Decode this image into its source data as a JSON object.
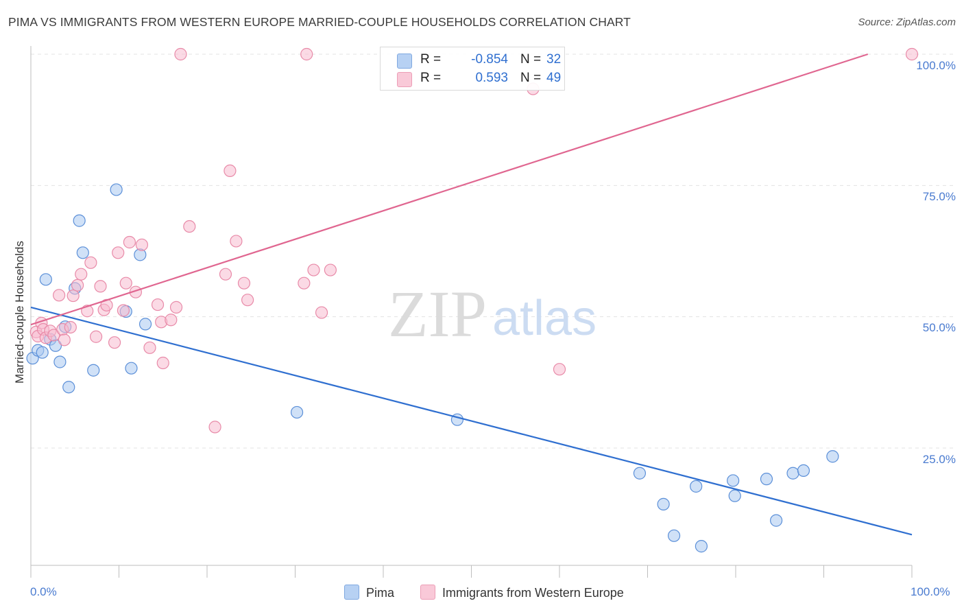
{
  "title": "PIMA VS IMMIGRANTS FROM WESTERN EUROPE MARRIED-COUPLE HOUSEHOLDS CORRELATION CHART",
  "source": "Source: ZipAtlas.com",
  "watermark": {
    "zip": "ZIP",
    "atlas": "atlas"
  },
  "legend": {
    "rows": [
      {
        "r_label": "R =",
        "r_value": "-0.854",
        "n_label": "N =",
        "n_value": "32"
      },
      {
        "r_label": "R =",
        "r_value": "0.593",
        "n_label": "N =",
        "n_value": "49"
      }
    ]
  },
  "chart_data": {
    "type": "scatter",
    "title": "PIMA VS IMMIGRANTS FROM WESTERN EUROPE MARRIED-COUPLE HOUSEHOLDS CORRELATION CHART",
    "xlabel": "",
    "ylabel": "Married-couple Households",
    "x_tick_labels": [
      "0.0%",
      "100.0%"
    ],
    "y_tick_labels": [
      "100.0%",
      "75.0%",
      "50.0%",
      "25.0%"
    ],
    "xlim": [
      0,
      100
    ],
    "ylim": [
      2,
      100
    ],
    "grid": "horizontal dashed",
    "legend_position": "bottom",
    "series": [
      {
        "name": "Pima",
        "color": "#a9c8f0",
        "edge_color": "#5b8fd8",
        "line_color": "#2f6fd0",
        "r": -0.854,
        "n": 32,
        "trend": [
          [
            0,
            51.8
          ],
          [
            100,
            8.5
          ]
        ],
        "points": [
          [
            0.2,
            42.1
          ],
          [
            0.8,
            43.6
          ],
          [
            1.3,
            43.2
          ],
          [
            1.7,
            57.1
          ],
          [
            2.2,
            45.7
          ],
          [
            2.8,
            44.5
          ],
          [
            3.3,
            41.4
          ],
          [
            3.9,
            48.1
          ],
          [
            4.3,
            36.6
          ],
          [
            5.0,
            55.4
          ],
          [
            5.5,
            68.3
          ],
          [
            5.9,
            62.2
          ],
          [
            7.1,
            39.8
          ],
          [
            9.7,
            74.2
          ],
          [
            10.8,
            51.0
          ],
          [
            11.4,
            40.2
          ],
          [
            12.4,
            61.8
          ],
          [
            13.0,
            48.6
          ],
          [
            30.2,
            31.8
          ],
          [
            48.4,
            30.4
          ],
          [
            69.1,
            20.2
          ],
          [
            71.8,
            14.3
          ],
          [
            73.0,
            8.3
          ],
          [
            75.5,
            17.7
          ],
          [
            76.1,
            6.3
          ],
          [
            79.7,
            18.8
          ],
          [
            79.9,
            15.9
          ],
          [
            83.5,
            19.1
          ],
          [
            84.6,
            11.2
          ],
          [
            86.5,
            20.2
          ],
          [
            87.7,
            20.7
          ],
          [
            91.0,
            23.4
          ]
        ]
      },
      {
        "name": "Immigrants from Western Europe",
        "color": "#f7bcd0",
        "edge_color": "#e88aa8",
        "line_color": "#e06690",
        "r": 0.593,
        "n": 49,
        "trend": [
          [
            0,
            48.5
          ],
          [
            95,
            100
          ]
        ],
        "points": [
          [
            0.6,
            47.1
          ],
          [
            0.8,
            46.3
          ],
          [
            1.2,
            48.8
          ],
          [
            1.4,
            47.6
          ],
          [
            1.7,
            46.0
          ],
          [
            2.2,
            47.3
          ],
          [
            2.6,
            46.5
          ],
          [
            3.2,
            54.1
          ],
          [
            3.6,
            47.6
          ],
          [
            3.8,
            45.6
          ],
          [
            4.5,
            48.0
          ],
          [
            4.8,
            54.0
          ],
          [
            5.3,
            56.0
          ],
          [
            5.7,
            58.1
          ],
          [
            6.4,
            51.1
          ],
          [
            6.8,
            60.3
          ],
          [
            7.4,
            46.2
          ],
          [
            7.9,
            55.8
          ],
          [
            8.3,
            51.3
          ],
          [
            8.6,
            52.2
          ],
          [
            9.5,
            45.1
          ],
          [
            9.9,
            62.2
          ],
          [
            10.5,
            51.2
          ],
          [
            10.8,
            56.4
          ],
          [
            11.2,
            64.2
          ],
          [
            11.9,
            54.7
          ],
          [
            12.6,
            63.7
          ],
          [
            13.5,
            44.1
          ],
          [
            14.4,
            52.3
          ],
          [
            14.8,
            49.0
          ],
          [
            15.0,
            41.2
          ],
          [
            15.9,
            49.4
          ],
          [
            16.5,
            51.8
          ],
          [
            17.0,
            100.0
          ],
          [
            18.0,
            67.2
          ],
          [
            20.9,
            29.0
          ],
          [
            22.1,
            58.1
          ],
          [
            22.6,
            77.8
          ],
          [
            23.3,
            64.4
          ],
          [
            24.2,
            56.4
          ],
          [
            24.6,
            53.2
          ],
          [
            31.0,
            56.4
          ],
          [
            31.3,
            100.0
          ],
          [
            32.1,
            58.9
          ],
          [
            33.0,
            50.8
          ],
          [
            34.0,
            58.9
          ],
          [
            57.0,
            93.4
          ],
          [
            60.0,
            40.0
          ],
          [
            100.0,
            100.0
          ]
        ]
      }
    ]
  }
}
